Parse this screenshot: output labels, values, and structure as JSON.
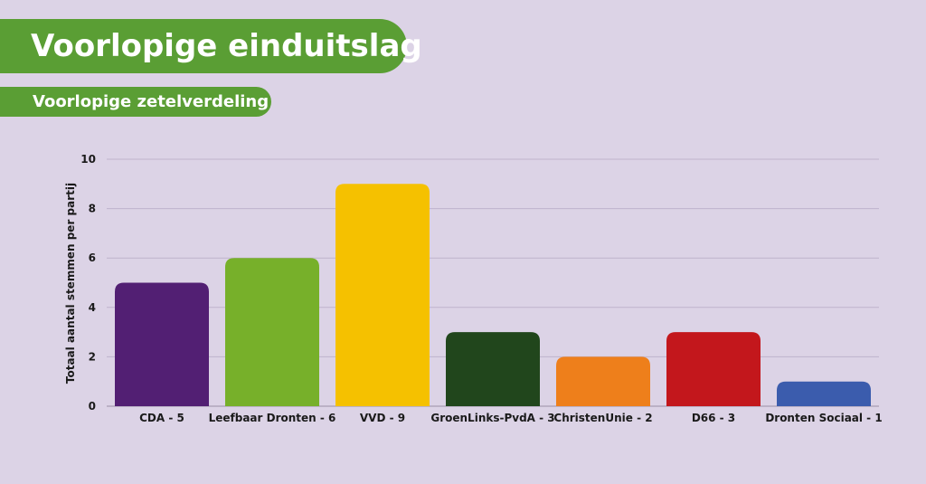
{
  "header": {
    "title": "Voorlopige einduitslag",
    "subtitle": "Voorlopige zetelverdeling"
  },
  "chart_data": {
    "type": "bar",
    "categories": [
      "CDA - 5",
      "Leefbaar Dronten - 6",
      "VVD - 9",
      "GroenLinks-PvdA - 3",
      "ChristenUnie - 2",
      "D66 - 3",
      "Dronten Sociaal - 1"
    ],
    "values": [
      5,
      6,
      9,
      3,
      2,
      3,
      1
    ],
    "colors": [
      "#521f73",
      "#77b02a",
      "#f5c100",
      "#21461c",
      "#ee7f1b",
      "#c3171c",
      "#3b5cad"
    ],
    "ylabel": "Totaal aantal stemmen per partij",
    "xlabel": "",
    "ylim": [
      0,
      10
    ],
    "yticks": [
      0,
      2,
      4,
      6,
      8,
      10
    ],
    "grid": true,
    "legend": "none"
  }
}
